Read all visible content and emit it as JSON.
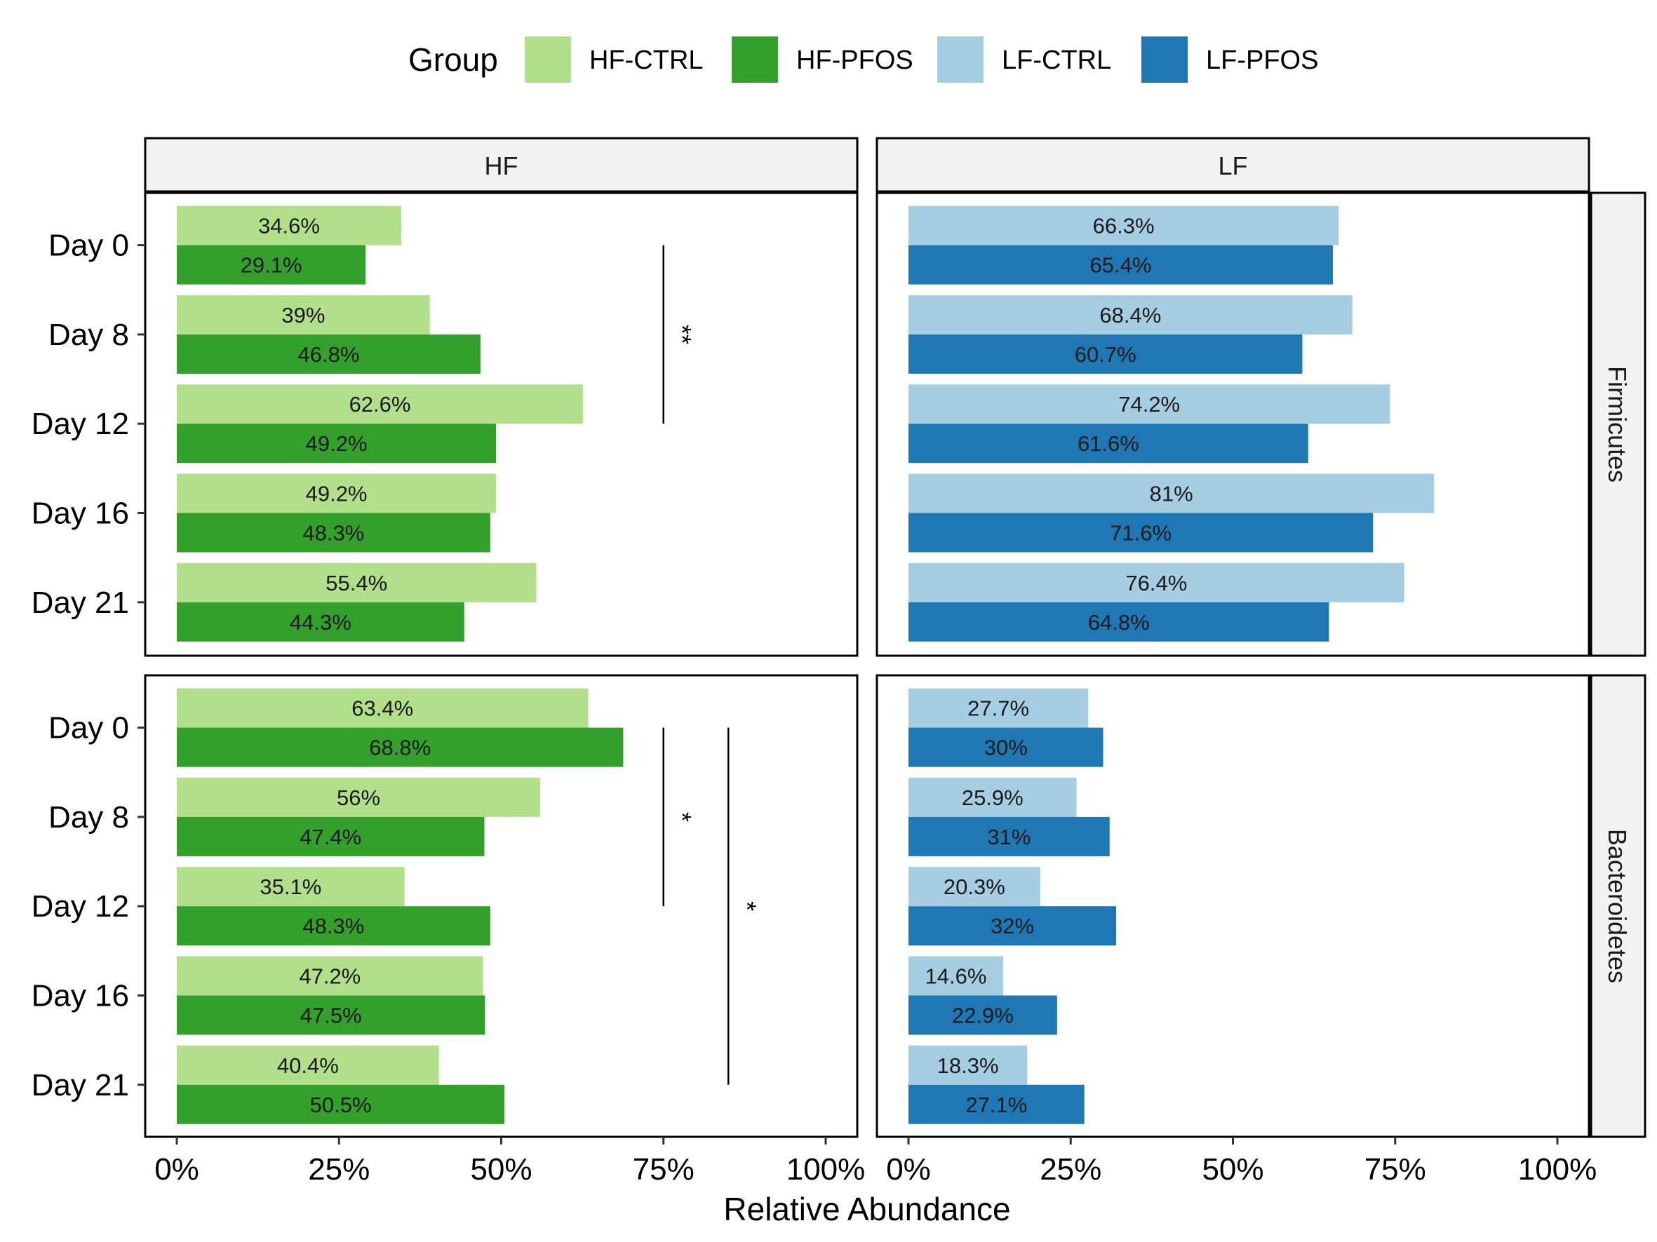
{
  "chart_data": {
    "type": "bar",
    "orientation": "horizontal",
    "xlabel": "Relative Abundance",
    "ylabel": "",
    "xlim": [
      0,
      100
    ],
    "x_ticks": [
      0,
      25,
      50,
      75,
      100
    ],
    "x_tick_labels": [
      "0%",
      "25%",
      "50%",
      "75%",
      "100%"
    ],
    "categories": [
      "Day 0",
      "Day 8",
      "Day 12",
      "Day 16",
      "Day 21"
    ],
    "legend": {
      "title": "Group",
      "position": "top",
      "entries": [
        {
          "name": "HF-CTRL",
          "color": "#b2df8a"
        },
        {
          "name": "HF-PFOS",
          "color": "#33a02c"
        },
        {
          "name": "LF-CTRL",
          "color": "#a6cee3"
        },
        {
          "name": "LF-PFOS",
          "color": "#1f78b4"
        }
      ]
    },
    "column_facets": [
      "HF",
      "LF"
    ],
    "row_facets": [
      "Firmicutes",
      "Bacteroidetes"
    ],
    "panels": [
      {
        "row": "Firmicutes",
        "col": "HF",
        "series": [
          {
            "name": "HF-CTRL",
            "values": [
              34.6,
              39,
              62.6,
              49.2,
              55.4
            ],
            "labels": [
              "34.6%",
              "39%",
              "62.6%",
              "49.2%",
              "55.4%"
            ]
          },
          {
            "name": "HF-PFOS",
            "values": [
              29.1,
              46.8,
              49.2,
              48.3,
              44.3
            ],
            "labels": [
              "29.1%",
              "46.8%",
              "49.2%",
              "48.3%",
              "44.3%"
            ]
          }
        ],
        "significance": [
          {
            "from": "Day 0",
            "to": "Day 12",
            "at": 75,
            "label": "**"
          }
        ]
      },
      {
        "row": "Firmicutes",
        "col": "LF",
        "series": [
          {
            "name": "LF-CTRL",
            "values": [
              66.3,
              68.4,
              74.2,
              81,
              76.4
            ],
            "labels": [
              "66.3%",
              "68.4%",
              "74.2%",
              "81%",
              "76.4%"
            ]
          },
          {
            "name": "LF-PFOS",
            "values": [
              65.4,
              60.7,
              61.6,
              71.6,
              64.8
            ],
            "labels": [
              "65.4%",
              "60.7%",
              "61.6%",
              "71.6%",
              "64.8%"
            ]
          }
        ],
        "significance": []
      },
      {
        "row": "Bacteroidetes",
        "col": "HF",
        "series": [
          {
            "name": "HF-CTRL",
            "values": [
              63.4,
              56,
              35.1,
              47.2,
              40.4
            ],
            "labels": [
              "63.4%",
              "56%",
              "35.1%",
              "47.2%",
              "40.4%"
            ]
          },
          {
            "name": "HF-PFOS",
            "values": [
              68.8,
              47.4,
              48.3,
              47.5,
              50.5
            ],
            "labels": [
              "68.8%",
              "47.4%",
              "48.3%",
              "47.5%",
              "50.5%"
            ]
          }
        ],
        "significance": [
          {
            "from": "Day 0",
            "to": "Day 12",
            "at": 75,
            "label": "*"
          },
          {
            "from": "Day 0",
            "to": "Day 21",
            "at": 85,
            "label": "*"
          }
        ]
      },
      {
        "row": "Bacteroidetes",
        "col": "LF",
        "series": [
          {
            "name": "LF-CTRL",
            "values": [
              27.7,
              25.9,
              20.3,
              14.6,
              18.3
            ],
            "labels": [
              "27.7%",
              "25.9%",
              "20.3%",
              "14.6%",
              "18.3%"
            ]
          },
          {
            "name": "LF-PFOS",
            "values": [
              30,
              31,
              32,
              22.9,
              27.1
            ],
            "labels": [
              "30%",
              "31%",
              "32%",
              "22.9%",
              "27.1%"
            ]
          }
        ],
        "significance": []
      }
    ]
  }
}
